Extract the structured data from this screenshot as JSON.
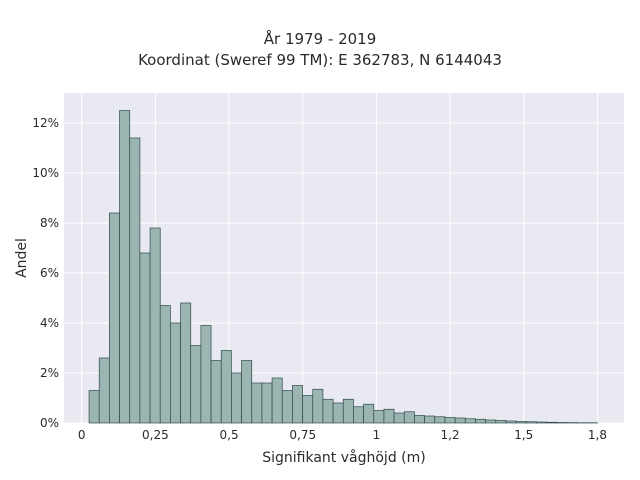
{
  "chart_data": {
    "type": "bar",
    "title_line1": "År 1979 - 2019",
    "title_line2": "Koordinat (Sweref 99 TM): E 362783, N 6144043",
    "xlabel": "Signifikant våghöjd (m)",
    "ylabel": "Andel",
    "xlim": [
      -0.06,
      1.84
    ],
    "ylim": [
      0,
      13.2
    ],
    "x_ticks": [
      0,
      0.25,
      0.5,
      0.75,
      1,
      1.25,
      1.5,
      1.75
    ],
    "x_tick_labels": [
      "0",
      "0,25",
      "0,5",
      "0,75",
      "1",
      "1,2",
      "1,5",
      "1,8"
    ],
    "y_ticks": [
      0,
      2,
      4,
      6,
      8,
      10,
      12
    ],
    "y_tick_labels": [
      "0%",
      "2%",
      "4%",
      "6%",
      "8%",
      "10%",
      "12%"
    ],
    "bin_start": 0.025,
    "bin_width": 0.0345,
    "values": [
      1.3,
      2.6,
      8.4,
      12.5,
      11.4,
      6.8,
      7.8,
      4.7,
      4.0,
      4.8,
      3.1,
      3.9,
      2.5,
      2.9,
      2.0,
      2.5,
      1.6,
      1.6,
      1.8,
      1.3,
      1.5,
      1.1,
      1.35,
      0.95,
      0.8,
      0.95,
      0.65,
      0.75,
      0.5,
      0.55,
      0.4,
      0.45,
      0.3,
      0.28,
      0.25,
      0.22,
      0.2,
      0.17,
      0.15,
      0.12,
      0.1,
      0.08,
      0.06,
      0.05,
      0.04,
      0.03,
      0.02,
      0.015,
      0.01,
      0.01
    ],
    "grid": true,
    "bar_color": "#9bb5b3",
    "bar_edge_color": "#2f4a48",
    "plot_background": "#e9e9f1",
    "grid_color": "#ffffff"
  }
}
